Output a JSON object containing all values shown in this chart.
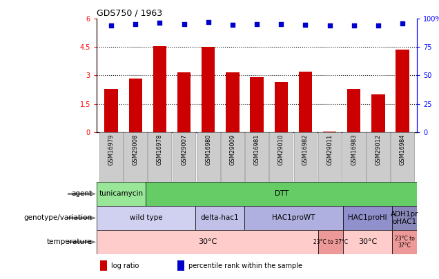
{
  "title": "GDS750 / 1963",
  "samples": [
    "GSM16979",
    "GSM29008",
    "GSM16978",
    "GSM29007",
    "GSM16980",
    "GSM29009",
    "GSM16981",
    "GSM29010",
    "GSM16982",
    "GSM29011",
    "GSM16983",
    "GSM29012",
    "GSM16984"
  ],
  "log_ratio": [
    2.3,
    2.85,
    4.55,
    3.15,
    4.5,
    3.15,
    2.9,
    2.65,
    3.2,
    0.05,
    2.3,
    2.0,
    4.35
  ],
  "percentile": [
    5.62,
    5.7,
    5.78,
    5.7,
    5.8,
    5.68,
    5.7,
    5.7,
    5.68,
    5.62,
    5.65,
    5.62,
    5.75
  ],
  "bar_color": "#cc0000",
  "dot_color": "#0000cc",
  "ylim_left": [
    0,
    6
  ],
  "ylim_right": [
    0,
    100
  ],
  "yticks_left": [
    0,
    1.5,
    3.0,
    4.5,
    6.0
  ],
  "ytick_labels_left": [
    "0",
    "1.5",
    "3",
    "4.5",
    "6"
  ],
  "yticks_right": [
    0,
    25,
    50,
    75,
    100
  ],
  "ytick_labels_right": [
    "0",
    "25",
    "50",
    "75",
    "100%"
  ],
  "dotted_lines": [
    1.5,
    3.0,
    4.5
  ],
  "agent_segments": [
    {
      "start": 0,
      "end": 2,
      "color": "#99e699",
      "label": "tunicamycin"
    },
    {
      "start": 2,
      "end": 13,
      "color": "#66cc66",
      "label": "DTT"
    }
  ],
  "genotype_segments": [
    {
      "start": 0,
      "end": 4,
      "color": "#d0d0f0",
      "label": "wild type"
    },
    {
      "start": 4,
      "end": 6,
      "color": "#c0c0e8",
      "label": "delta-hac1"
    },
    {
      "start": 6,
      "end": 10,
      "color": "#b0b0e0",
      "label": "HAC1proWT"
    },
    {
      "start": 10,
      "end": 12,
      "color": "#9090cc",
      "label": "HAC1proHI"
    },
    {
      "start": 12,
      "end": 13,
      "color": "#8888bb",
      "label": "ADH1pr\noHAC1"
    }
  ],
  "temperature_segments": [
    {
      "start": 0,
      "end": 9,
      "color": "#ffcccc",
      "label": "30°C",
      "fontsize": 8
    },
    {
      "start": 9,
      "end": 10,
      "color": "#ee9999",
      "label": "23°C to 37°C",
      "fontsize": 5.5
    },
    {
      "start": 10,
      "end": 12,
      "color": "#ffcccc",
      "label": "30°C",
      "fontsize": 8
    },
    {
      "start": 12,
      "end": 13,
      "color": "#ee9999",
      "label": "23°C to\n37°C",
      "fontsize": 5.5
    }
  ],
  "row_labels": [
    {
      "label": "agent",
      "row": "agent"
    },
    {
      "label": "genotype/variation",
      "row": "genotype"
    },
    {
      "label": "temperature",
      "row": "temperature"
    }
  ],
  "legend_items": [
    {
      "color": "#cc0000",
      "label": "log ratio"
    },
    {
      "color": "#0000cc",
      "label": "percentile rank within the sample"
    }
  ],
  "xlabel_bg_color": "#cccccc",
  "xlabel_border_color": "#888888"
}
